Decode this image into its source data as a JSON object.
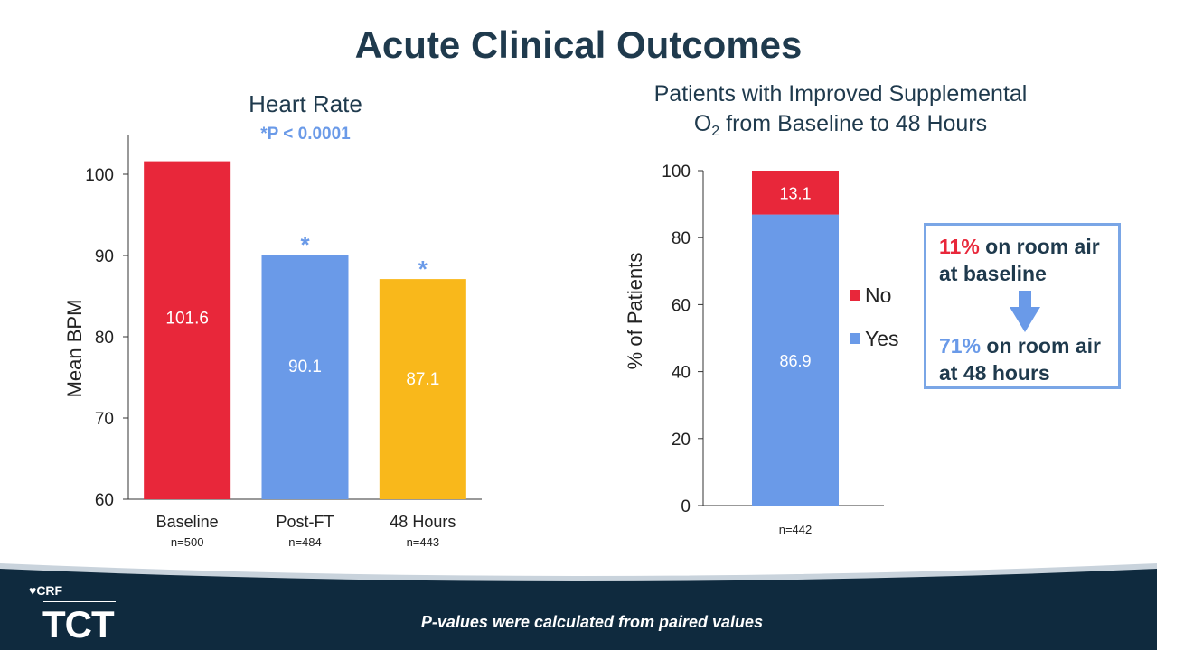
{
  "slide_title": "Acute Clinical Outcomes",
  "colors": {
    "title": "#1f3a4d",
    "red": "#e8273a",
    "blue": "#6a9ae8",
    "gold": "#f9b81b",
    "navy": "#0f2a3e",
    "callout_border": "#7aa6e6"
  },
  "chart_data": [
    {
      "type": "bar",
      "title": "Heart Rate",
      "annotation": "*P < 0.0001",
      "ylabel": "Mean BPM",
      "ylim": [
        60,
        105
      ],
      "yticks": [
        60,
        70,
        80,
        90,
        100
      ],
      "categories": [
        "Baseline",
        "Post-FT",
        "48 Hours"
      ],
      "n_labels": [
        "n=500",
        "n=484",
        "n=443"
      ],
      "values": [
        101.6,
        90.1,
        87.1
      ],
      "data_labels": [
        "101.6",
        "90.1",
        "87.1"
      ],
      "significance_markers": [
        "",
        "*",
        "*"
      ],
      "bar_colors": [
        "#e8273a",
        "#6a9ae8",
        "#f9b81b"
      ],
      "grid": false
    },
    {
      "type": "bar",
      "stacked": true,
      "title": "Patients with Improved Supplemental O2 from Baseline to 48 Hours",
      "ylabel": "% of Patients",
      "ylim": [
        0,
        100
      ],
      "yticks": [
        0,
        20,
        40,
        60,
        80,
        100
      ],
      "categories": [
        ""
      ],
      "n_labels": [
        "n=442"
      ],
      "series": [
        {
          "name": "Yes",
          "values": [
            86.9
          ],
          "data_labels": [
            "86.9"
          ],
          "color": "#6a9ae8"
        },
        {
          "name": "No",
          "values": [
            13.1
          ],
          "data_labels": [
            "13.1"
          ],
          "color": "#e8273a"
        }
      ],
      "legend": {
        "placement": "right",
        "order": [
          "No",
          "Yes"
        ]
      },
      "grid": false
    }
  ],
  "o2_title": {
    "line1": "Patients with Improved Supplemental",
    "line2_pre": "O",
    "line2_sub": "2",
    "line2_post": " from Baseline to 48 Hours"
  },
  "callout": {
    "baseline_pct": "11%",
    "baseline_text_1": " on room air",
    "baseline_text_2": "at baseline",
    "arrow_icon": "arrow-down-icon",
    "followup_pct": "71%",
    "followup_text_1": " on room air",
    "followup_text_2": "at 48 hours"
  },
  "footer": {
    "logo_crf": "CRF",
    "logo_tct": "TCT",
    "logo_icon": "crf-heart-icon",
    "note": "P-values were calculated from paired values"
  }
}
